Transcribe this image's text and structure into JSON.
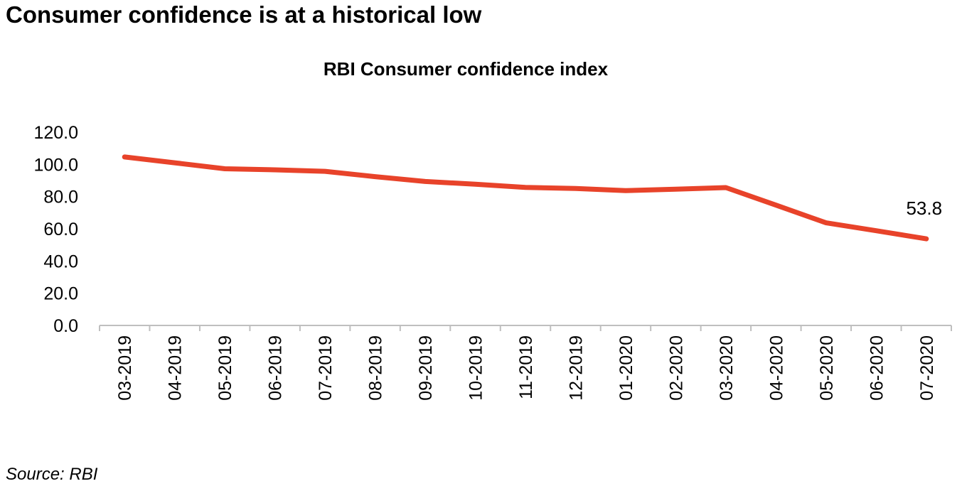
{
  "headline": "Consumer confidence is at a historical low",
  "source": "Source: RBI",
  "chart_data": {
    "type": "line",
    "title": "RBI Consumer confidence index",
    "xlabel": "",
    "ylabel": "",
    "ylim": [
      0,
      120
    ],
    "yticks": [
      "0.0",
      "20.0",
      "40.0",
      "60.0",
      "80.0",
      "100.0",
      "120.0"
    ],
    "categories": [
      "03-2019",
      "04-2019",
      "05-2019",
      "06-2019",
      "07-2019",
      "08-2019",
      "09-2019",
      "10-2019",
      "11-2019",
      "12-2019",
      "01-2020",
      "02-2020",
      "03-2020",
      "04-2020",
      "05-2020",
      "06-2020",
      "07-2020"
    ],
    "series": [
      {
        "name": "RBI Consumer confidence index",
        "color": "#e8432a",
        "values": [
          104.6,
          101.0,
          97.3,
          96.6,
          95.7,
          92.4,
          89.4,
          87.7,
          85.7,
          85.0,
          83.7,
          84.6,
          85.6,
          74.7,
          63.7,
          58.8,
          53.8
        ]
      }
    ],
    "data_labels": [
      {
        "index": 16,
        "text": "53.8"
      }
    ],
    "grid": false
  }
}
